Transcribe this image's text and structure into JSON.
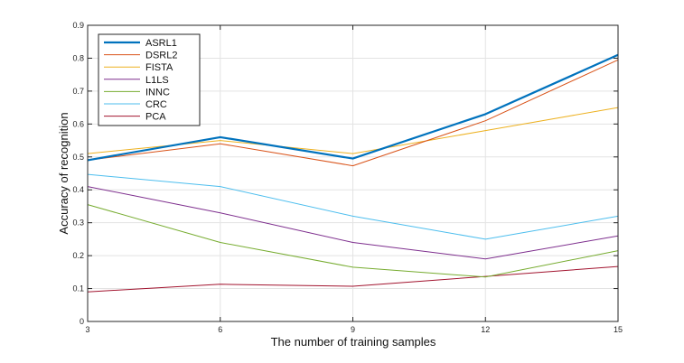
{
  "chart_data": {
    "type": "line",
    "xlabel": "The number of training samples",
    "ylabel": "Accuracy of recognition",
    "x": [
      3,
      6,
      9,
      12,
      15
    ],
    "x_tick_labels": [
      "3",
      "6",
      "9",
      "12",
      "15"
    ],
    "y_ticks": [
      0,
      0.1,
      0.2,
      0.3,
      0.4,
      0.5,
      0.6,
      0.7,
      0.8,
      0.9
    ],
    "y_tick_labels": [
      "0",
      "0.1",
      "0.2",
      "0.3",
      "0.4",
      "0.5",
      "0.6",
      "0.7",
      "0.8",
      "0.9"
    ],
    "xlim": [
      3,
      15
    ],
    "ylim": [
      0,
      0.9
    ],
    "grid": true,
    "legend_position": "top-left",
    "series": [
      {
        "name": "ASRL1",
        "color": "#0072BD",
        "values": [
          0.49,
          0.56,
          0.495,
          0.63,
          0.81
        ],
        "thick": true
      },
      {
        "name": "DSRL2",
        "color": "#D95319",
        "values": [
          0.49,
          0.54,
          0.473,
          0.61,
          0.795
        ]
      },
      {
        "name": "FISTA",
        "color": "#EDB120",
        "values": [
          0.51,
          0.55,
          0.51,
          0.58,
          0.65
        ]
      },
      {
        "name": "L1LS",
        "color": "#7E2F8E",
        "values": [
          0.41,
          0.33,
          0.24,
          0.19,
          0.26
        ]
      },
      {
        "name": "INNC",
        "color": "#77AC30",
        "values": [
          0.355,
          0.24,
          0.165,
          0.135,
          0.215
        ]
      },
      {
        "name": "CRC",
        "color": "#4DBEEE",
        "values": [
          0.447,
          0.41,
          0.32,
          0.25,
          0.32
        ]
      },
      {
        "name": "PCA",
        "color": "#A2142F",
        "values": [
          0.09,
          0.113,
          0.107,
          0.137,
          0.167
        ]
      }
    ]
  }
}
